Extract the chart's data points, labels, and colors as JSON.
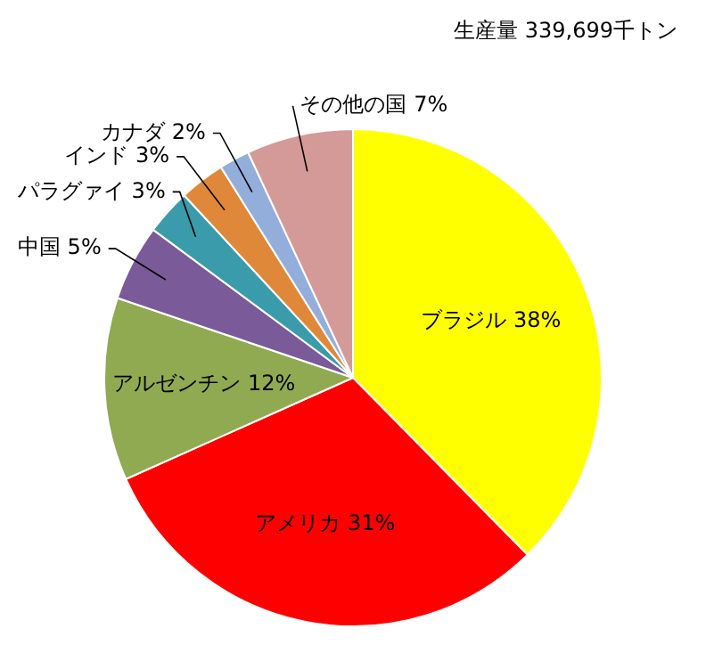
{
  "chart_data": {
    "type": "pie",
    "title": "生産量 339,699千トン",
    "categories": [
      "ブラジル",
      "アメリカ",
      "アルゼンチン",
      "中国",
      "パラグァイ",
      "インド",
      "カナダ",
      "その他の国"
    ],
    "values": [
      38,
      31,
      12,
      5,
      3,
      3,
      2,
      7
    ],
    "colors": [
      "#ffff00",
      "#ff0000",
      "#8faa50",
      "#7b5a99",
      "#3a9bab",
      "#e0883a",
      "#94aedb",
      "#d49a97"
    ],
    "data_labels": true,
    "value_labels": [
      "38%",
      "31%",
      "12%",
      "5%",
      "3%",
      "3%",
      "2%",
      "7%"
    ],
    "legend": false
  }
}
